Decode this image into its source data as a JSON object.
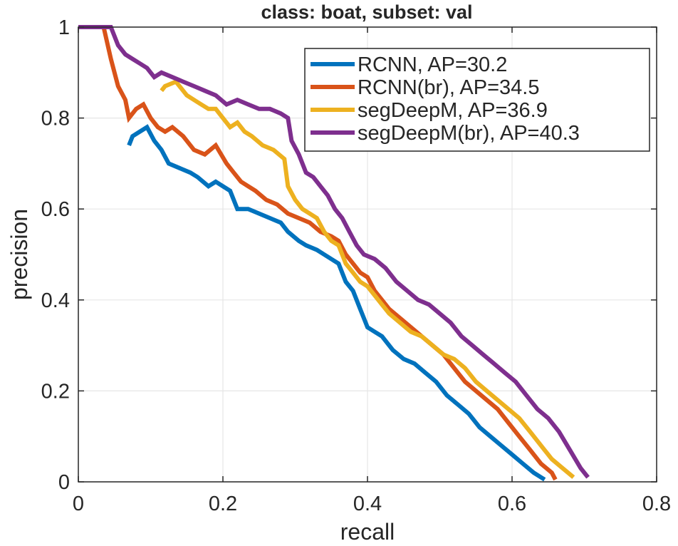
{
  "chart_data": {
    "type": "line",
    "title": "class: boat, subset: val",
    "xlabel": "recall",
    "ylabel": "precision",
    "xlim": [
      0,
      0.8
    ],
    "ylim": [
      0,
      1
    ],
    "xticks": [
      0,
      0.2,
      0.4,
      0.6,
      0.8
    ],
    "yticks": [
      0,
      0.2,
      0.4,
      0.6,
      0.8,
      1
    ],
    "xtick_labels": [
      "0",
      "0.2",
      "0.4",
      "0.6",
      "0.8"
    ],
    "ytick_labels": [
      "0",
      "0.2",
      "0.4",
      "0.6",
      "0.8",
      "1"
    ],
    "grid": true,
    "legend_position": "top-right",
    "series": [
      {
        "name": "RCNN, AP=30.2",
        "color": "#0072BD",
        "x": [
          0.07,
          0.075,
          0.085,
          0.095,
          0.105,
          0.115,
          0.125,
          0.14,
          0.155,
          0.165,
          0.18,
          0.19,
          0.2,
          0.21,
          0.22,
          0.235,
          0.25,
          0.265,
          0.28,
          0.29,
          0.305,
          0.315,
          0.33,
          0.34,
          0.35,
          0.36,
          0.37,
          0.38,
          0.39,
          0.4,
          0.41,
          0.42,
          0.435,
          0.45,
          0.465,
          0.48,
          0.495,
          0.51,
          0.525,
          0.54,
          0.555,
          0.57,
          0.585,
          0.6,
          0.615,
          0.63,
          0.645
        ],
        "y": [
          0.74,
          0.76,
          0.77,
          0.78,
          0.75,
          0.73,
          0.7,
          0.69,
          0.68,
          0.67,
          0.65,
          0.66,
          0.65,
          0.64,
          0.6,
          0.6,
          0.59,
          0.58,
          0.57,
          0.55,
          0.53,
          0.52,
          0.51,
          0.5,
          0.49,
          0.48,
          0.44,
          0.42,
          0.38,
          0.34,
          0.33,
          0.32,
          0.29,
          0.27,
          0.26,
          0.24,
          0.22,
          0.19,
          0.17,
          0.15,
          0.12,
          0.1,
          0.08,
          0.06,
          0.04,
          0.02,
          0.005
        ]
      },
      {
        "name": "RCNN(br), AP=34.5",
        "color": "#D95319",
        "x": [
          0.0,
          0.035,
          0.045,
          0.055,
          0.065,
          0.07,
          0.08,
          0.09,
          0.1,
          0.11,
          0.12,
          0.13,
          0.145,
          0.16,
          0.175,
          0.19,
          0.205,
          0.215,
          0.225,
          0.235,
          0.245,
          0.26,
          0.275,
          0.29,
          0.305,
          0.32,
          0.335,
          0.35,
          0.36,
          0.37,
          0.38,
          0.39,
          0.4,
          0.41,
          0.42,
          0.43,
          0.445,
          0.46,
          0.475,
          0.49,
          0.505,
          0.52,
          0.535,
          0.55,
          0.565,
          0.58,
          0.595,
          0.61,
          0.625,
          0.64,
          0.655,
          0.66
        ],
        "y": [
          1.0,
          1.0,
          0.93,
          0.87,
          0.84,
          0.8,
          0.82,
          0.83,
          0.8,
          0.78,
          0.77,
          0.78,
          0.76,
          0.73,
          0.72,
          0.74,
          0.7,
          0.68,
          0.66,
          0.65,
          0.64,
          0.62,
          0.61,
          0.59,
          0.58,
          0.57,
          0.55,
          0.54,
          0.53,
          0.5,
          0.48,
          0.46,
          0.45,
          0.42,
          0.4,
          0.38,
          0.36,
          0.34,
          0.32,
          0.3,
          0.28,
          0.25,
          0.22,
          0.2,
          0.18,
          0.16,
          0.13,
          0.1,
          0.07,
          0.04,
          0.02,
          0.005
        ]
      },
      {
        "name": "segDeepM, AP=36.9",
        "color": "#EDB120",
        "x": [
          0.115,
          0.12,
          0.135,
          0.15,
          0.16,
          0.17,
          0.18,
          0.19,
          0.2,
          0.21,
          0.22,
          0.23,
          0.24,
          0.255,
          0.27,
          0.285,
          0.29,
          0.3,
          0.31,
          0.32,
          0.33,
          0.34,
          0.35,
          0.36,
          0.37,
          0.38,
          0.39,
          0.4,
          0.41,
          0.42,
          0.43,
          0.445,
          0.46,
          0.475,
          0.49,
          0.505,
          0.52,
          0.535,
          0.55,
          0.565,
          0.58,
          0.595,
          0.61,
          0.625,
          0.64,
          0.655,
          0.67,
          0.685
        ],
        "y": [
          0.86,
          0.87,
          0.88,
          0.85,
          0.84,
          0.83,
          0.82,
          0.82,
          0.8,
          0.78,
          0.79,
          0.77,
          0.76,
          0.74,
          0.73,
          0.71,
          0.65,
          0.62,
          0.6,
          0.59,
          0.58,
          0.55,
          0.53,
          0.52,
          0.48,
          0.46,
          0.44,
          0.43,
          0.41,
          0.39,
          0.37,
          0.35,
          0.33,
          0.32,
          0.3,
          0.28,
          0.27,
          0.25,
          0.22,
          0.2,
          0.18,
          0.16,
          0.14,
          0.11,
          0.08,
          0.05,
          0.03,
          0.01
        ]
      },
      {
        "name": "segDeepM(br), AP=40.3",
        "color": "#7E2F8E",
        "x": [
          0.0,
          0.045,
          0.055,
          0.065,
          0.075,
          0.085,
          0.095,
          0.105,
          0.115,
          0.13,
          0.145,
          0.16,
          0.175,
          0.19,
          0.205,
          0.22,
          0.235,
          0.25,
          0.265,
          0.28,
          0.29,
          0.295,
          0.305,
          0.315,
          0.325,
          0.335,
          0.345,
          0.355,
          0.365,
          0.375,
          0.385,
          0.395,
          0.41,
          0.425,
          0.44,
          0.455,
          0.47,
          0.485,
          0.5,
          0.515,
          0.53,
          0.545,
          0.56,
          0.575,
          0.59,
          0.605,
          0.62,
          0.635,
          0.65,
          0.665,
          0.68,
          0.695,
          0.705
        ],
        "y": [
          1.0,
          1.0,
          0.96,
          0.94,
          0.93,
          0.92,
          0.91,
          0.89,
          0.9,
          0.89,
          0.88,
          0.87,
          0.86,
          0.85,
          0.83,
          0.84,
          0.83,
          0.82,
          0.82,
          0.81,
          0.8,
          0.75,
          0.72,
          0.68,
          0.67,
          0.65,
          0.63,
          0.6,
          0.58,
          0.55,
          0.52,
          0.5,
          0.49,
          0.47,
          0.44,
          0.42,
          0.4,
          0.39,
          0.37,
          0.35,
          0.32,
          0.3,
          0.28,
          0.26,
          0.24,
          0.22,
          0.19,
          0.16,
          0.14,
          0.11,
          0.07,
          0.03,
          0.01
        ]
      }
    ]
  }
}
